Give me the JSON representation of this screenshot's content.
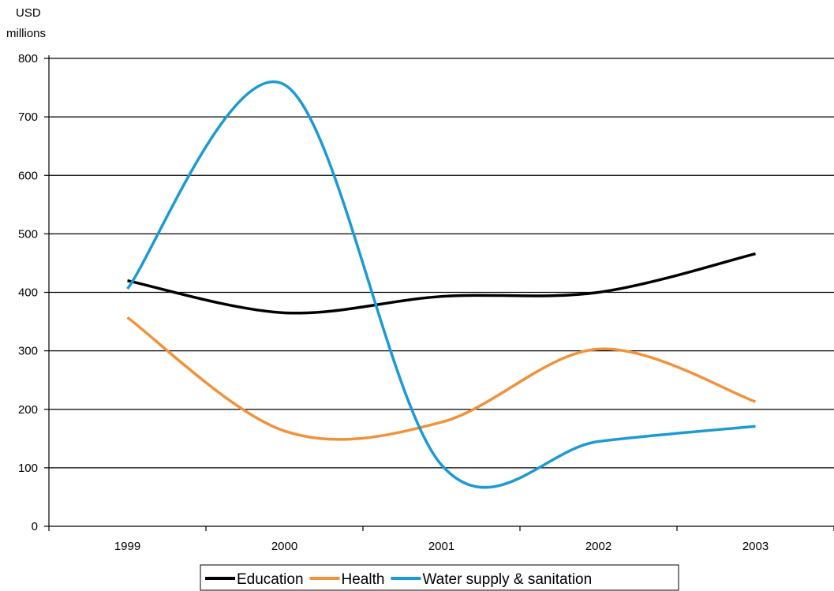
{
  "chart_data": {
    "type": "line",
    "title": "",
    "ylabel_lines": [
      "USD",
      "millions"
    ],
    "xlabel": "",
    "x": [
      "1999",
      "2000",
      "2001",
      "2002",
      "2003"
    ],
    "yticks": [
      "0",
      "100",
      "200",
      "300",
      "400",
      "500",
      "600",
      "700",
      "800"
    ],
    "ylim": [
      0,
      800
    ],
    "grid": true,
    "legend_position": "bottom",
    "series": [
      {
        "name": "Education",
        "color": "#000000",
        "values": [
          420,
          365,
          393,
          400,
          466
        ]
      },
      {
        "name": "Health",
        "color": "#F0923A",
        "values": [
          357,
          163,
          178,
          303,
          213
        ]
      },
      {
        "name": "Water supply & sanitation",
        "color": "#1C9AD2",
        "values": [
          406,
          755,
          105,
          145,
          171
        ]
      }
    ]
  }
}
